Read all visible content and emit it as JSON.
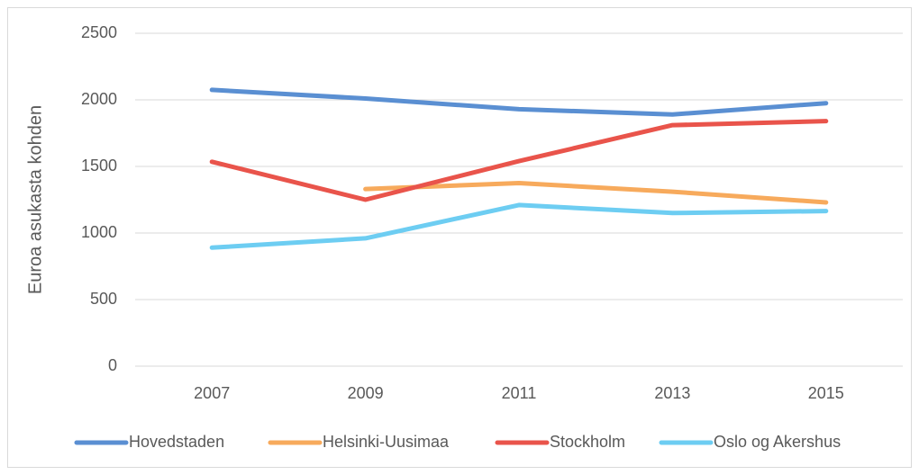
{
  "chart_data": {
    "type": "line",
    "y_label": "Euroa asukasta kohden",
    "categories": [
      "2007",
      "2009",
      "2011",
      "2013",
      "2015"
    ],
    "series": [
      {
        "name": "Hovedstaden",
        "color": "#5a8fd2",
        "values": [
          2075,
          2010,
          1930,
          1890,
          1975
        ]
      },
      {
        "name": "Helsinki-Uusimaa",
        "color": "#f7aa5c",
        "values": [
          null,
          1330,
          1375,
          1310,
          1230
        ]
      },
      {
        "name": "Stockholm",
        "color": "#e9544b",
        "values": [
          1535,
          1250,
          1540,
          1810,
          1840
        ]
      },
      {
        "name": "Oslo og Akershus",
        "color": "#6dcdf2",
        "values": [
          890,
          960,
          1210,
          1150,
          1165
        ]
      }
    ],
    "ylim": [
      0,
      2500
    ],
    "yticks": [
      0,
      500,
      1000,
      1500,
      2000,
      2500
    ],
    "grid": true,
    "legend": "bottom"
  }
}
